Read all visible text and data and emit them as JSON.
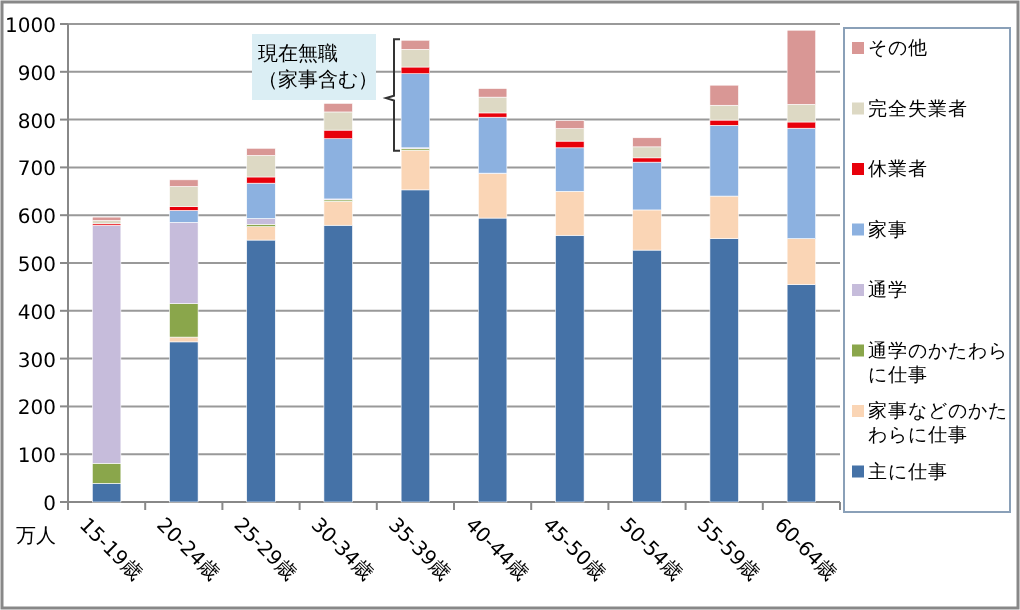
{
  "chart_data": {
    "type": "bar",
    "stacked": true,
    "ylabel": "万人",
    "categories": [
      "15-19歳",
      "20-24歳",
      "25-29歳",
      "30-34歳",
      "35-39歳",
      "40-44歳",
      "45-50歳",
      "50-54歳",
      "55-59歳",
      "60-64歳"
    ],
    "series": [
      {
        "name": "主に仕事",
        "color": "#4572a7",
        "values": [
          39,
          335,
          548,
          579,
          653,
          594,
          558,
          527,
          551,
          455
        ]
      },
      {
        "name": "家事などのかたわらに仕事",
        "color": "#fad5b5",
        "values": [
          0,
          10,
          28,
          50,
          83,
          93,
          92,
          84,
          89,
          96
        ]
      },
      {
        "name": "通学のかたわらに仕事",
        "color": "#8aa64b",
        "values": [
          42,
          70,
          5,
          3,
          3,
          0,
          0,
          0,
          0,
          0
        ]
      },
      {
        "name": "通学",
        "color": "#c6bcdb",
        "values": [
          498,
          170,
          12,
          2,
          2,
          1,
          0,
          0,
          0,
          0
        ]
      },
      {
        "name": "家事",
        "color": "#8cb1e0",
        "values": [
          0,
          25,
          74,
          126,
          155,
          117,
          91,
          100,
          148,
          231
        ]
      },
      {
        "name": "休業者",
        "color": "#e8000b",
        "values": [
          3,
          8,
          13,
          18,
          14,
          9,
          14,
          9,
          11,
          13
        ]
      },
      {
        "name": "完全失業者",
        "color": "#ddd9c4",
        "values": [
          7,
          42,
          45,
          38,
          37,
          33,
          26,
          23,
          31,
          37
        ]
      },
      {
        "name": "その他",
        "color": "#d99795",
        "values": [
          7,
          14,
          15,
          18,
          19,
          18,
          17,
          19,
          42,
          155
        ]
      }
    ],
    "ylim": [
      0,
      1000
    ],
    "yticks": [
      0,
      100,
      200,
      300,
      400,
      500,
      600,
      700,
      800,
      900,
      1000
    ],
    "grid": "y",
    "legend": "right",
    "annotations": [
      "現在無職",
      "（家事含む）"
    ]
  }
}
